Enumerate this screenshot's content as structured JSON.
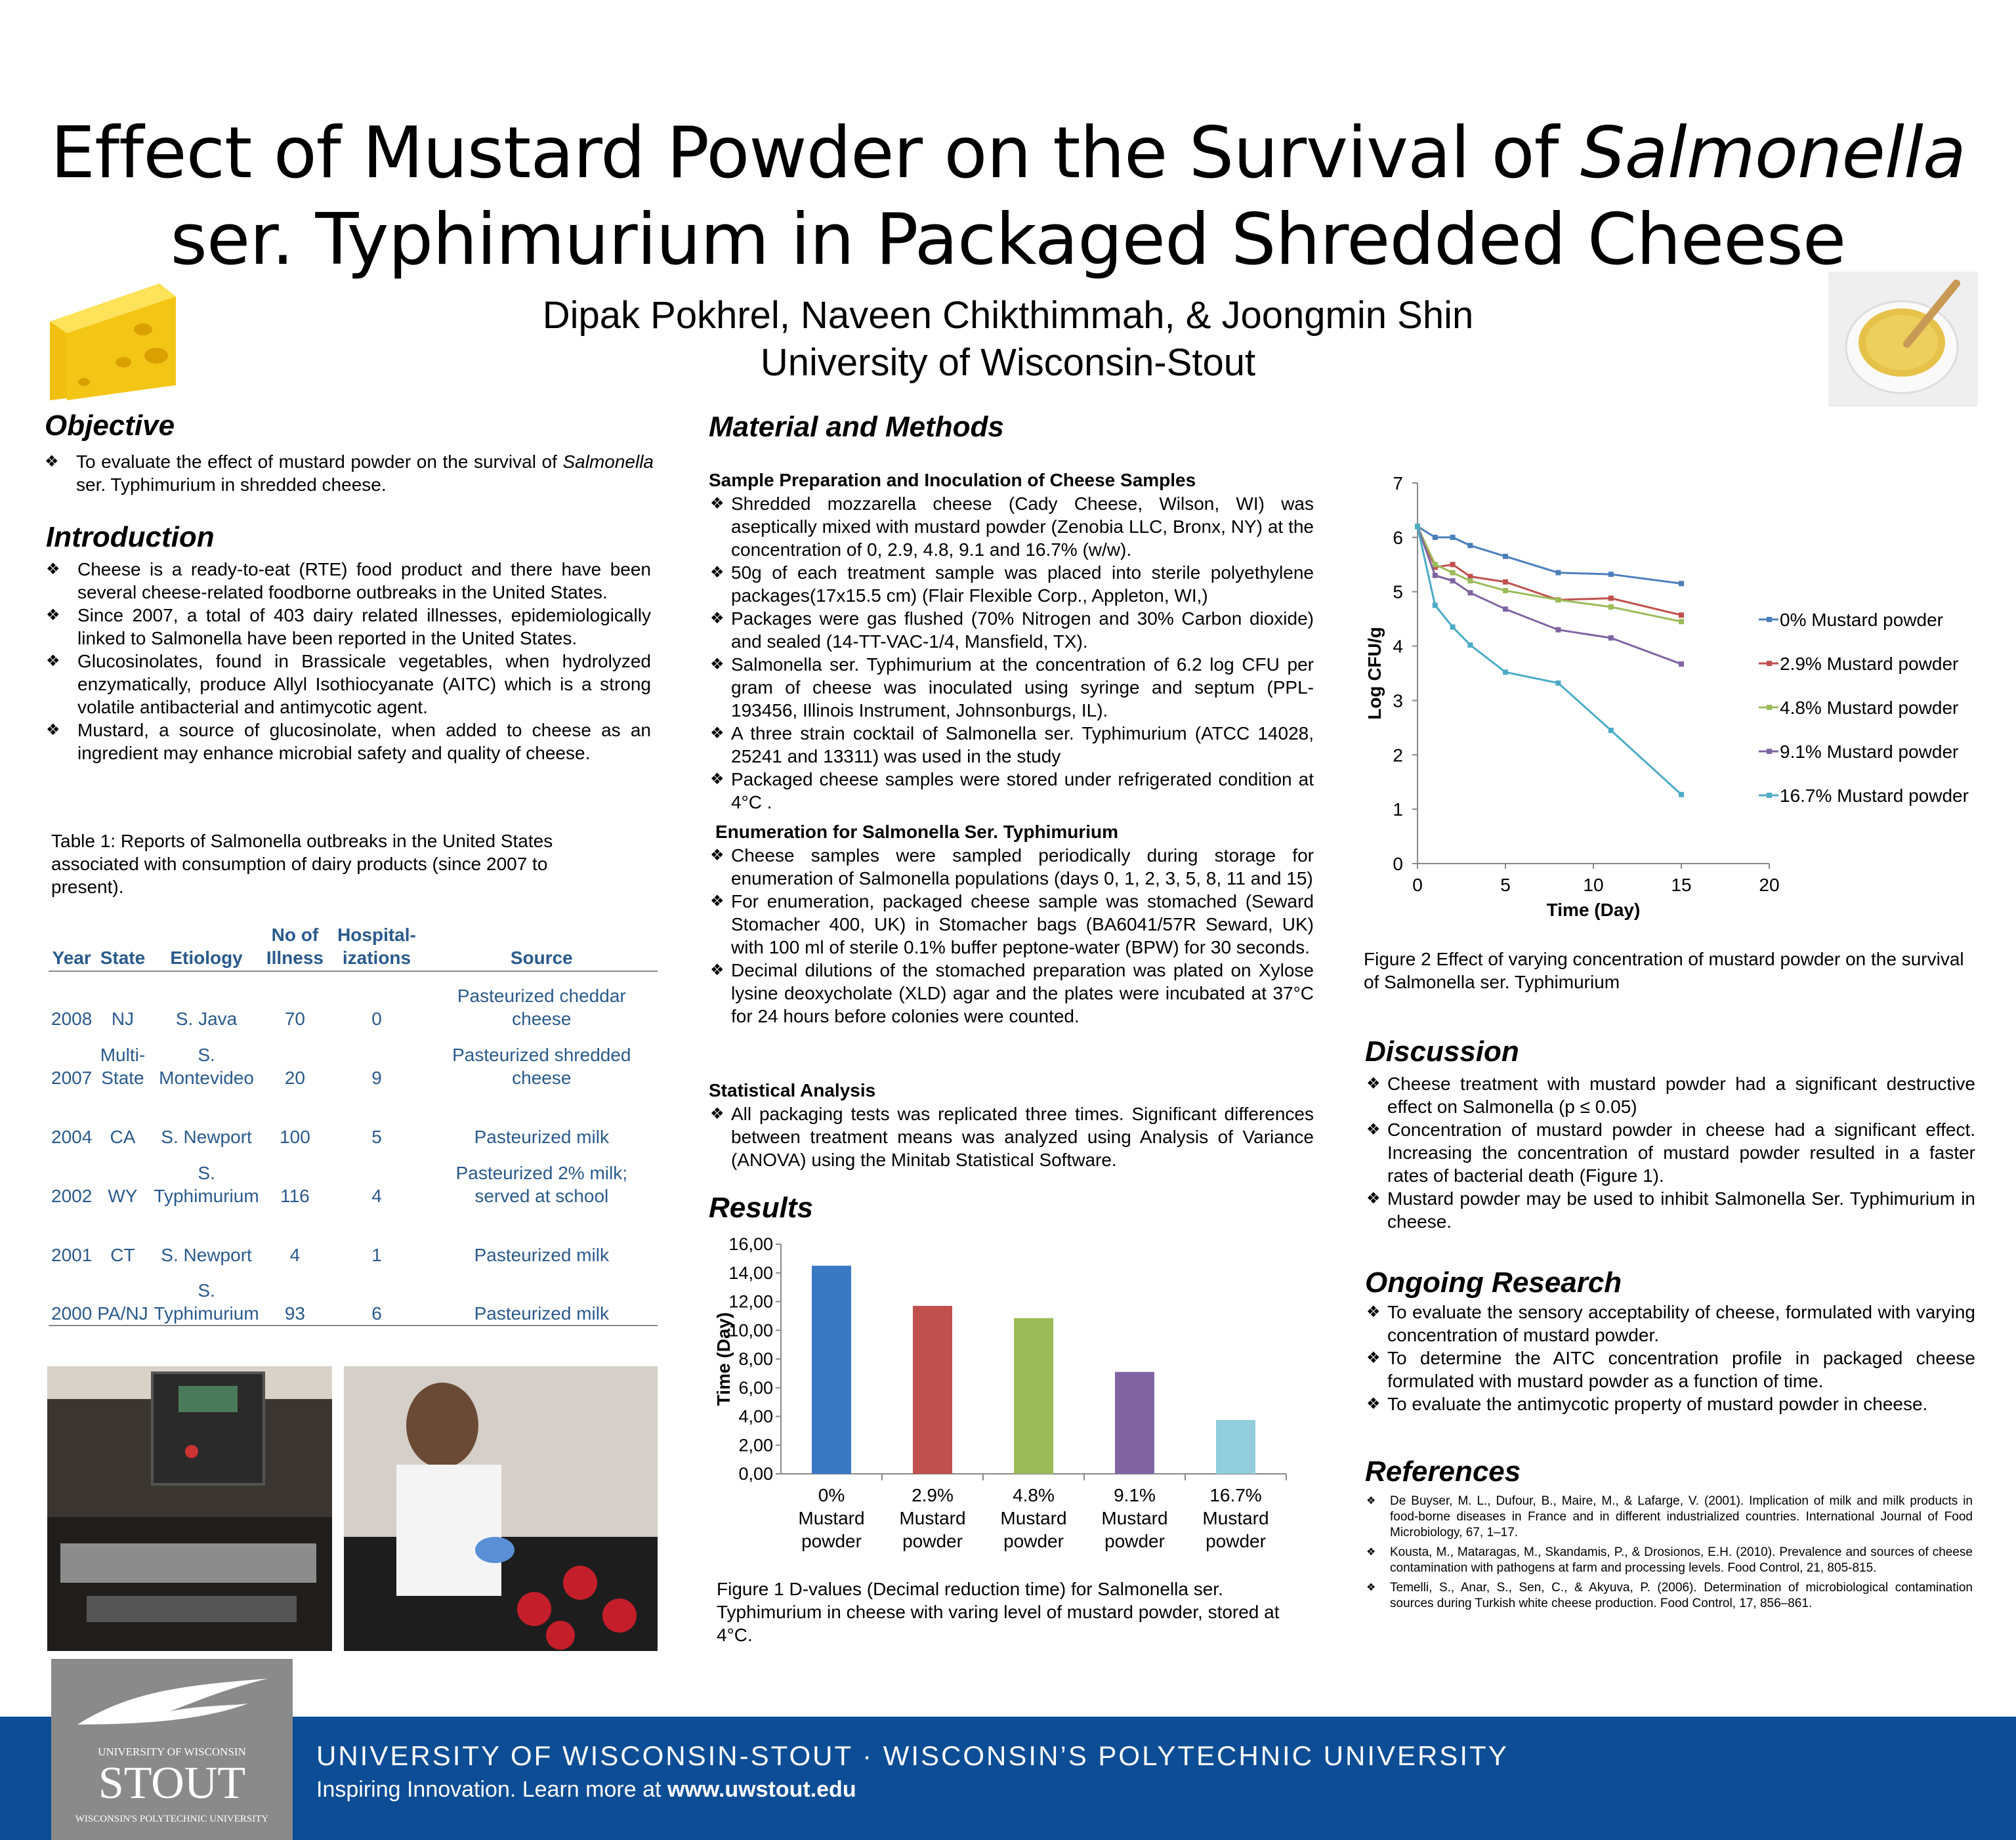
{
  "title_line1": "Effect of Mustard Powder on the Survival of ",
  "title_italic": "Salmonella",
  "title_line2": "ser. Typhimurium in Packaged Shredded Cheese",
  "authors": "Dipak Pokhrel, Naveen Chikthimmah, & Joongmin Shin",
  "affiliation": "University of Wisconsin-Stout",
  "objective": {
    "heading": "Objective",
    "items": [
      {
        "pre": "To evaluate the effect of mustard powder on the survival of ",
        "it": "Salmonella",
        "post": " ser. Typhimurium in shredded cheese."
      }
    ]
  },
  "introduction": {
    "heading": "Introduction",
    "items": [
      "Cheese is a ready-to-eat (RTE) food product and there have been several cheese-related foodborne outbreaks in the United States.",
      "Since 2007, a total of 403 dairy related illnesses, epidemiologically linked to Salmonella have been reported in the United States.",
      "Glucosinolates, found in Brassicale vegetables, when hydrolyzed enzymatically, produce Allyl Isothiocyanate (AITC) which is a strong volatile antibacterial and antimycotic agent.",
      "Mustard, a source of glucosinolate, when added to cheese as an ingredient may enhance microbial safety and quality of cheese."
    ]
  },
  "table": {
    "caption": "Table 1: Reports of Salmonella outbreaks in the United States associated with consumption of dairy products (since 2007 to present).",
    "headers": [
      "Year",
      "State",
      "Etiology",
      "No of Illness",
      "Hospital-izations",
      "Source"
    ],
    "rows": [
      [
        "2008",
        "NJ",
        "S. Java",
        "70",
        "0",
        "Pasteurized cheddar cheese"
      ],
      [
        "2007",
        "Multi-State",
        "S. Montevideo",
        "20",
        "9",
        "Pasteurized shredded cheese"
      ],
      [
        "2004",
        "CA",
        "S. Newport",
        "100",
        "5",
        "Pasteurized milk"
      ],
      [
        "2002",
        "WY",
        "S. Typhimurium",
        "116",
        "4",
        "Pasteurized 2% milk; served at school"
      ],
      [
        "2001",
        "CT",
        "S. Newport",
        "4",
        "1",
        "Pasteurized milk"
      ],
      [
        "2000",
        "PA/NJ",
        "S. Typhimurium",
        "93",
        "6",
        "Pasteurized milk"
      ]
    ]
  },
  "methods": {
    "heading": "Material and Methods",
    "sub1": "Sample Preparation and Inoculation of Cheese Samples",
    "items1": [
      "Shredded mozzarella cheese (Cady Cheese, Wilson, WI) was aseptically mixed with mustard powder (Zenobia LLC, Bronx, NY) at the concentration of 0, 2.9, 4.8, 9.1 and 16.7% (w/w).",
      "50g of each treatment sample was placed into sterile polyethylene packages(17x15.5 cm) (Flair Flexible Corp., Appleton, WI,)",
      "Packages were gas flushed (70% Nitrogen and 30% Carbon dioxide) and sealed (14-TT-VAC-1/4, Mansfield, TX).",
      "Salmonella ser. Typhimurium at the concentration of 6.2 log CFU per gram of cheese was inoculated using syringe and septum (PPL-193456, Illinois Instrument, Johnsonburgs, IL).",
      "A three strain cocktail of Salmonella ser. Typhimurium (ATCC 14028, 25241 and 13311) was used in the study",
      "Packaged cheese samples were stored under refrigerated condition at 4°C ."
    ],
    "sub2": "Enumeration for Salmonella Ser. Typhimurium",
    "items2": [
      "Cheese samples were sampled periodically during storage for enumeration of Salmonella populations (days 0, 1, 2, 3, 5, 8, 11 and 15)",
      "For enumeration, packaged cheese sample was stomached (Seward Stomacher 400, UK) in Stomacher bags (BA6041/57R Seward, UK) with 100 ml of sterile 0.1% buffer peptone-water (BPW) for 30 seconds.",
      "Decimal dilutions of the stomached preparation was plated on Xylose lysine deoxycholate (XLD) agar and the plates were incubated at 37°C for 24 hours before colonies were counted."
    ],
    "sub3": "Statistical Analysis",
    "items3": [
      "All packaging tests was replicated three times. Significant differences between treatment means was analyzed using Analysis of Variance (ANOVA) using the Minitab Statistical Software."
    ]
  },
  "results": {
    "heading": "Results",
    "fig1_caption": "Figure 1 D-values (Decimal reduction time) for Salmonella ser. Typhimurium in cheese with varing level of mustard powder, stored at 4°C.",
    "fig2_caption": "Figure 2 Effect of varying concentration of mustard powder on the survival of Salmonella ser. Typhimurium"
  },
  "discussion": {
    "heading": "Discussion",
    "items": [
      "Cheese treatment with mustard powder had a significant destructive effect on Salmonella (p ≤ 0.05)",
      "Concentration of mustard powder in cheese had a significant effect. Increasing the concentration of mustard powder resulted in a faster rates of bacterial death (Figure 1).",
      "Mustard powder may be used to inhibit Salmonella Ser. Typhimurium in cheese."
    ]
  },
  "ongoing": {
    "heading": "Ongoing Research",
    "items": [
      "To evaluate the sensory acceptability of cheese, formulated with varying concentration of mustard powder.",
      "To determine the AITC concentration profile in packaged cheese formulated with mustard powder as a function of time.",
      "To evaluate the antimycotic property of mustard powder in cheese."
    ]
  },
  "references": {
    "heading": "References",
    "items": [
      "De Buyser, M. L., Dufour, B., Maire, M., & Lafarge, V. (2001). Implication of milk and milk products in food-borne diseases in France and in different industrialized countries. International Journal of Food Microbiology, 67, 1–17.",
      "Kousta, M., Mataragas, M., Skandamis, P., & Drosionos, E.H. (2010). Prevalence and sources of cheese contamination with pathogens at farm and processing levels. Food Control, 21, 805-815.",
      "Temelli, S., Anar, S., Sen, C., & Akyuva, P. (2006). Determination of microbiological contamination sources during Turkish white cheese production. Food Control, 17, 856–861."
    ]
  },
  "footer": {
    "line1": "UNIVERSITY OF WISCONSIN-STOUT · WISCONSIN’S POLYTECHNIC UNIVERSITY",
    "line2_pre": "Inspiring Innovation. Learn more at ",
    "line2_bold": "www.uwstout.edu",
    "logo_top": "UNIVERSITY OF WISCONSIN",
    "logo_mid": "STOUT",
    "logo_bottom": "WISCONSIN'S POLYTECHNIC UNIVERSITY"
  },
  "colors": {
    "footer": "#0d4d95",
    "table_text": "#2a5a8c"
  },
  "chart_data": [
    {
      "type": "bar",
      "categories": [
        "0% Mustard powder",
        "2.9% Mustard powder",
        "4.8% Mustard powder",
        "9.1% Mustard powder",
        "16.7% Mustard powder"
      ],
      "values": [
        14.5,
        11.7,
        10.85,
        7.1,
        3.75
      ],
      "colors": [
        "#3a78c4",
        "#c0504d",
        "#9bbb59",
        "#8064a2",
        "#92cddc"
      ],
      "ylabel": "Time (Day)",
      "ylim": [
        0,
        16
      ],
      "ticks": [
        "0,00",
        "2,00",
        "4,00",
        "6,00",
        "8,00",
        "10,00",
        "12,00",
        "14,00",
        "16,00"
      ]
    },
    {
      "type": "line",
      "xlabel": "Time (Day)",
      "ylabel": "Log CFU/g",
      "xlim": [
        0,
        20
      ],
      "ylim": [
        0,
        7
      ],
      "xticks": [
        "0",
        "5",
        "10",
        "15",
        "20"
      ],
      "yticks": [
        "0",
        "1",
        "2",
        "3",
        "4",
        "5",
        "6",
        "7"
      ],
      "x": [
        0,
        1,
        2,
        3,
        5,
        8,
        11,
        15
      ],
      "series": [
        {
          "name": "0% Mustard powder",
          "color": "#4a7ebb",
          "values": [
            6.2,
            6.0,
            6.0,
            5.85,
            5.65,
            5.35,
            5.32,
            5.15
          ]
        },
        {
          "name": "2.9%  Mustard powder",
          "color": "#c0504d",
          "values": [
            6.2,
            5.45,
            5.5,
            5.28,
            5.18,
            4.85,
            4.88,
            4.57
          ]
        },
        {
          "name": "4.8%  Mustard powder",
          "color": "#9bbb59",
          "values": [
            6.2,
            5.5,
            5.35,
            5.2,
            5.02,
            4.85,
            4.72,
            4.45
          ]
        },
        {
          "name": "9.1%  Mustard powder",
          "color": "#8064a2",
          "values": [
            6.2,
            5.3,
            5.2,
            4.98,
            4.68,
            4.3,
            4.15,
            3.67
          ]
        },
        {
          "name": "16.7%  Mustard powder",
          "color": "#4bacc6",
          "values": [
            6.2,
            4.75,
            4.35,
            4.02,
            3.52,
            3.32,
            2.45,
            1.27
          ]
        }
      ]
    }
  ]
}
